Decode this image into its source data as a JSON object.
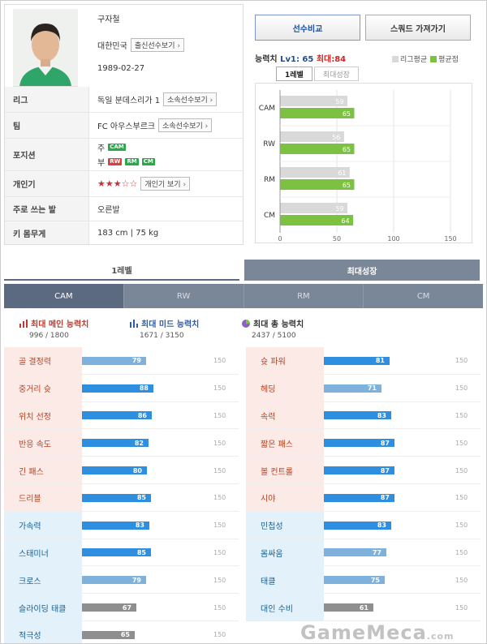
{
  "player": {
    "name": "구자철",
    "nation": "대한민국",
    "nation_btn": "출신선수보기",
    "birth": "1989-02-27",
    "rows": [
      {
        "label": "리그",
        "value": "독일 분데스리가 1",
        "button": "소속선수보기"
      },
      {
        "label": "팀",
        "value": "FC 아우스부르크",
        "button": "소속선수보기"
      },
      {
        "label": "포지션",
        "main_label": "주",
        "sub_label": "부",
        "main_positions": [
          "CAM"
        ],
        "sub_positions": [
          "RW",
          "RM",
          "CM"
        ]
      },
      {
        "label": "개인기",
        "stars": "★★★☆☆",
        "button": "개인기 보기"
      },
      {
        "label": "주로 쓰는 발",
        "value": "오른발"
      },
      {
        "label": "키 몸무게",
        "value": "183 cm  |  75 kg"
      }
    ]
  },
  "buttons": {
    "compare": "선수비교",
    "squad": "스쿼드 가져가기"
  },
  "chart_header": {
    "label": "능력치",
    "lv": "Lv1: 65",
    "max": "최대:84"
  },
  "chart_tabs": [
    "1레벨",
    "최대성장"
  ],
  "chart_data": {
    "type": "bar",
    "categories": [
      "CAM",
      "RW",
      "RM",
      "CM"
    ],
    "series": [
      {
        "name": "리그평균",
        "values": [
          59,
          56,
          61,
          59
        ],
        "color": "#d9d9d9"
      },
      {
        "name": "평균점",
        "values": [
          65,
          65,
          65,
          64
        ],
        "color": "#7cc142"
      }
    ],
    "xlim": [
      0,
      150
    ],
    "xticks": [
      "0",
      "50",
      "100",
      "150"
    ],
    "orientation": "horizontal",
    "grid": true,
    "legend": "top-right"
  },
  "big_tabs": [
    "1레벨",
    "최대성장"
  ],
  "pos_tabs": [
    "CAM",
    "RW",
    "RM",
    "CM"
  ],
  "summaries": [
    {
      "title": "최대 메인 능력치",
      "value": "996 / 1800",
      "style": "red"
    },
    {
      "title": "최대 미드 능력치",
      "value": "1671 / 3150",
      "style": "blue"
    },
    {
      "title": "최대 총 능력치",
      "value": "2437 / 5100",
      "style": "dark"
    }
  ],
  "stat_max": "150",
  "stats_left": [
    {
      "name": "골 결정력",
      "value": 79,
      "type": "main",
      "color": "lblue"
    },
    {
      "name": "중거리 슛",
      "value": 88,
      "type": "main",
      "color": "blue"
    },
    {
      "name": "위치 선정",
      "value": 86,
      "type": "main",
      "color": "blue"
    },
    {
      "name": "반응 속도",
      "value": 82,
      "type": "main",
      "color": "blue"
    },
    {
      "name": "긴 패스",
      "value": 80,
      "type": "main",
      "color": "blue"
    },
    {
      "name": "드리블",
      "value": 85,
      "type": "main",
      "color": "blue"
    },
    {
      "name": "가속력",
      "value": 83,
      "type": "sub",
      "color": "blue"
    },
    {
      "name": "스태미너",
      "value": 85,
      "type": "sub",
      "color": "blue"
    },
    {
      "name": "크로스",
      "value": 79,
      "type": "sub",
      "color": "lblue"
    },
    {
      "name": "슬라이딩 태클",
      "value": 67,
      "type": "sub",
      "color": "gray"
    },
    {
      "name": "적극성",
      "value": 65,
      "type": "sub",
      "color": "gray"
    }
  ],
  "stats_right": [
    {
      "name": "슛 파워",
      "value": 81,
      "type": "main",
      "color": "blue"
    },
    {
      "name": "헤딩",
      "value": 71,
      "type": "main",
      "color": "lblue"
    },
    {
      "name": "속력",
      "value": 83,
      "type": "main",
      "color": "blue"
    },
    {
      "name": "짧은 패스",
      "value": 87,
      "type": "main",
      "color": "blue"
    },
    {
      "name": "볼 컨트롤",
      "value": 87,
      "type": "main",
      "color": "blue"
    },
    {
      "name": "시야",
      "value": 87,
      "type": "main",
      "color": "blue"
    },
    {
      "name": "민첩성",
      "value": 83,
      "type": "sub",
      "color": "blue"
    },
    {
      "name": "몸싸움",
      "value": 77,
      "type": "sub",
      "color": "lblue"
    },
    {
      "name": "태클",
      "value": 75,
      "type": "sub",
      "color": "lblue"
    },
    {
      "name": "대인 수비",
      "value": 61,
      "type": "sub",
      "color": "gray"
    }
  ],
  "watermark": {
    "text": "GameMeca",
    "suffix": ".com"
  },
  "colors": {
    "blue_bar": "#2e8ee0",
    "light_bar": "#7eb2dc",
    "gray_bar": "#8f8f8f",
    "accent_red": "#d12424",
    "green": "#7cc142"
  }
}
